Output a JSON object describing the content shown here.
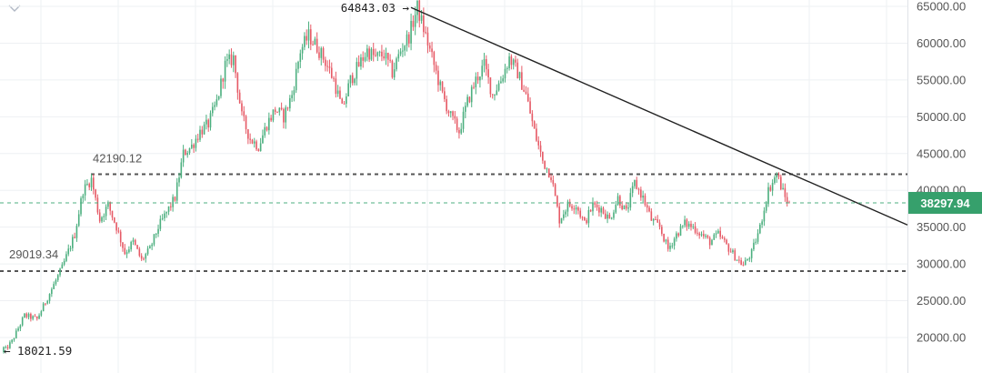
{
  "chart_data": {
    "type": "candlestick",
    "y_axis": {
      "position": "right",
      "ylim": [
        16500,
        66000
      ],
      "ticks": [
        20000,
        25000,
        30000,
        35000,
        40000,
        45000,
        50000,
        55000,
        60000,
        65000
      ],
      "tick_labels": [
        "20000.00",
        "25000.00",
        "30000.00",
        "35000.00",
        "40000.00",
        "45000.00",
        "50000.00",
        "55000.00",
        "60000.00",
        "65000.00"
      ]
    },
    "grid": true,
    "current_price": {
      "value": 38297.94,
      "label": "38297.94"
    },
    "levels": [
      {
        "value": 42190.12,
        "label": "42190.12"
      },
      {
        "value": 29019.34,
        "label": "29019.34"
      }
    ],
    "annotations": {
      "high": {
        "value": 64843.03,
        "label": "64843.03 →"
      },
      "low": {
        "value": 18021.59,
        "label": "← 18021.59"
      }
    },
    "trendline": {
      "from_price": 64843.03,
      "to_price": 35300
    },
    "waypoints": [
      [
        0,
        18021.59
      ],
      [
        4,
        19500
      ],
      [
        10,
        23000
      ],
      [
        16,
        22500
      ],
      [
        22,
        26000
      ],
      [
        28,
        29500
      ],
      [
        34,
        34000
      ],
      [
        38,
        40000
      ],
      [
        42,
        41500
      ],
      [
        46,
        36000
      ],
      [
        50,
        38000
      ],
      [
        54,
        35000
      ],
      [
        58,
        31500
      ],
      [
        62,
        33000
      ],
      [
        66,
        30500
      ],
      [
        70,
        32000
      ],
      [
        74,
        35000
      ],
      [
        78,
        37000
      ],
      [
        82,
        39000
      ],
      [
        86,
        45000
      ],
      [
        90,
        46000
      ],
      [
        94,
        48000
      ],
      [
        98,
        49000
      ],
      [
        102,
        52000
      ],
      [
        106,
        57000
      ],
      [
        110,
        58000
      ],
      [
        114,
        50000
      ],
      [
        118,
        47000
      ],
      [
        122,
        46000
      ],
      [
        126,
        49000
      ],
      [
        130,
        51000
      ],
      [
        134,
        50000
      ],
      [
        138,
        53000
      ],
      [
        142,
        59000
      ],
      [
        146,
        61000
      ],
      [
        150,
        59500
      ],
      [
        154,
        57500
      ],
      [
        158,
        55000
      ],
      [
        162,
        51000
      ],
      [
        166,
        55000
      ],
      [
        170,
        57000
      ],
      [
        174,
        59000
      ],
      [
        178,
        58000
      ],
      [
        182,
        58500
      ],
      [
        186,
        56000
      ],
      [
        190,
        59000
      ],
      [
        194,
        61000
      ],
      [
        198,
        64843.03
      ],
      [
        202,
        61000
      ],
      [
        206,
        57000
      ],
      [
        210,
        53000
      ],
      [
        214,
        50000
      ],
      [
        218,
        48000
      ],
      [
        222,
        52000
      ],
      [
        226,
        55000
      ],
      [
        230,
        57000
      ],
      [
        234,
        53000
      ],
      [
        238,
        55000
      ],
      [
        242,
        58000
      ],
      [
        246,
        56000
      ],
      [
        250,
        53000
      ],
      [
        254,
        48000
      ],
      [
        258,
        44000
      ],
      [
        262,
        42000
      ],
      [
        266,
        36000
      ],
      [
        270,
        38000
      ],
      [
        274,
        38000
      ],
      [
        278,
        35500
      ],
      [
        282,
        38000
      ],
      [
        286,
        37500
      ],
      [
        290,
        36000
      ],
      [
        294,
        39000
      ],
      [
        298,
        37000
      ],
      [
        302,
        41000
      ],
      [
        306,
        39000
      ],
      [
        310,
        36000
      ],
      [
        314,
        35000
      ],
      [
        318,
        32000
      ],
      [
        322,
        34000
      ],
      [
        326,
        35500
      ],
      [
        330,
        35000
      ],
      [
        334,
        34000
      ],
      [
        338,
        33000
      ],
      [
        342,
        34000
      ],
      [
        346,
        32500
      ],
      [
        350,
        31000
      ],
      [
        354,
        29800
      ],
      [
        358,
        31500
      ],
      [
        362,
        35000
      ],
      [
        366,
        40000
      ],
      [
        370,
        42190.12
      ],
      [
        374,
        39000
      ],
      [
        376,
        38297.94
      ]
    ]
  }
}
